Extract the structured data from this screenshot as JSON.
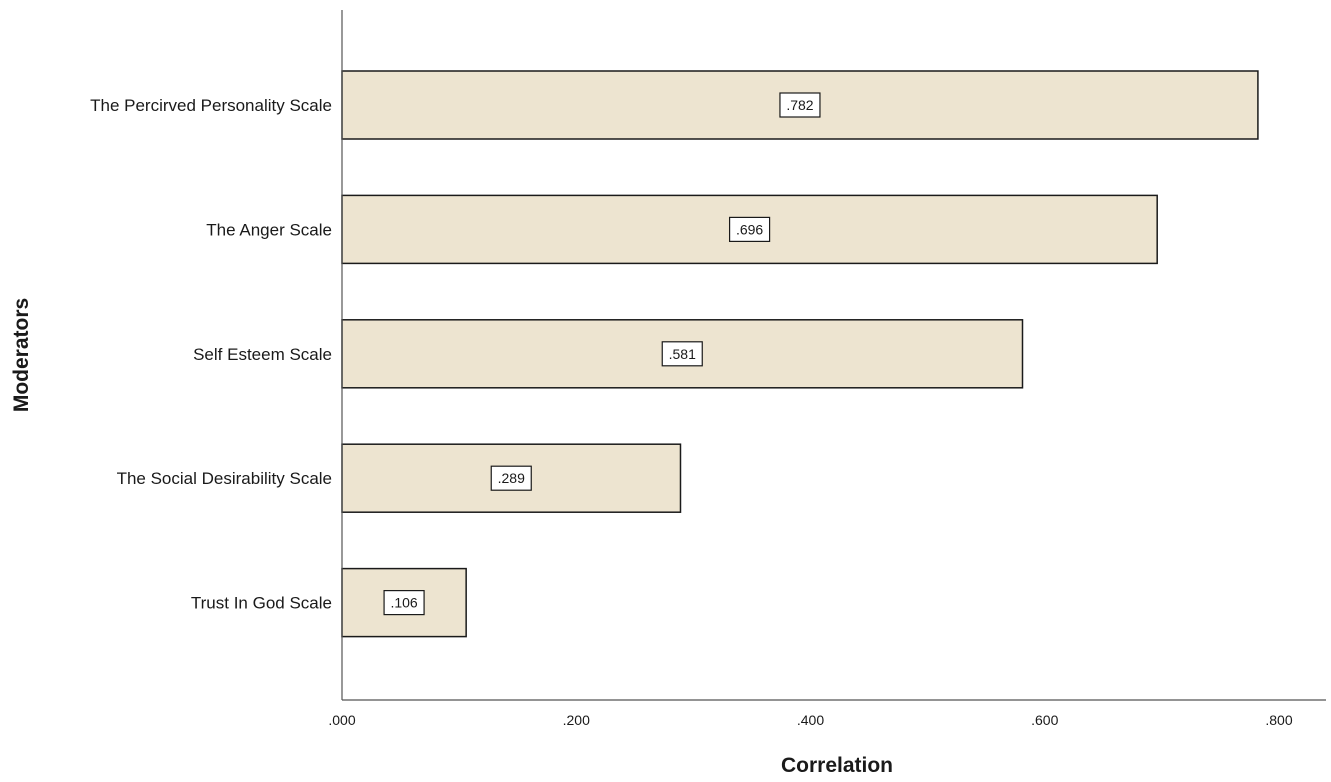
{
  "chart_data": {
    "type": "bar",
    "orientation": "horizontal",
    "categories": [
      "The Percirved Personality Scale",
      "The Anger Scale",
      "Self Esteem Scale",
      "The Social Desirability Scale",
      "Trust In God Scale"
    ],
    "values": [
      0.782,
      0.696,
      0.581,
      0.289,
      0.106
    ],
    "data_labels": [
      ".782",
      ".696",
      ".581",
      ".289",
      ".106"
    ],
    "xlabel": "Correlation",
    "ylabel": "Moderators",
    "xlim": [
      0,
      0.84
    ],
    "xticks": [
      0,
      0.2,
      0.4,
      0.6,
      0.8
    ],
    "xtick_labels": [
      ".000",
      ".200",
      ".400",
      ".600",
      ".800"
    ],
    "grid": false,
    "bar_color": "#ede4d0",
    "bar_edge_color": "#1a1a1a"
  }
}
